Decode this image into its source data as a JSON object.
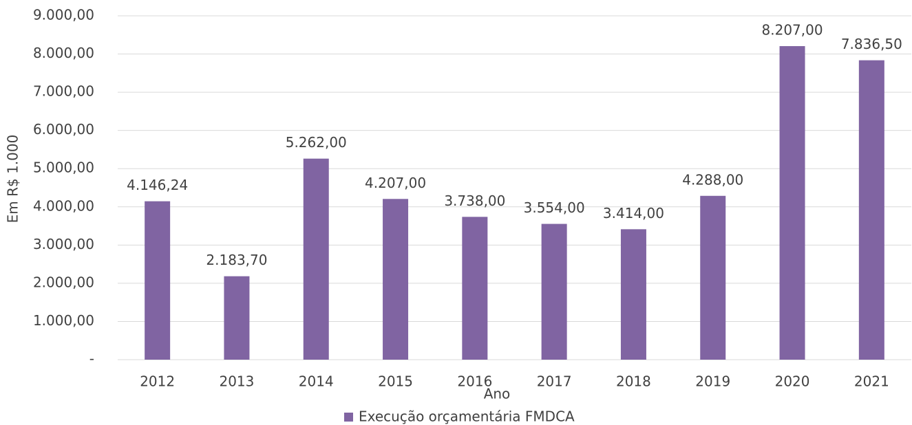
{
  "chart_data": {
    "type": "bar",
    "categories": [
      "2012",
      "2013",
      "2014",
      "2015",
      "2016",
      "2017",
      "2018",
      "2019",
      "2020",
      "2021"
    ],
    "series": [
      {
        "name": "Execução orçamentária FMDCA",
        "color": "#8064a2",
        "values": [
          4146.24,
          2183.7,
          5262,
          4207,
          3738,
          3554,
          3414,
          4288,
          8207,
          7836.5
        ],
        "value_labels": [
          "4.146,24",
          "2.183,70",
          "5.262,00",
          "4.207,00",
          "3.738,00",
          "3.554,00",
          "3.414,00",
          "4.288,00",
          "8.207,00",
          "7.836,50"
        ]
      }
    ],
    "x_label": "Ano",
    "y_label": "Em R$ 1.000",
    "ylim": [
      0,
      9000
    ],
    "yticks": [
      {
        "value": 0,
        "label": "-"
      },
      {
        "value": 1000,
        "label": "1.000,00"
      },
      {
        "value": 2000,
        "label": "2.000,00"
      },
      {
        "value": 3000,
        "label": "3.000,00"
      },
      {
        "value": 4000,
        "label": "4.000,00"
      },
      {
        "value": 5000,
        "label": "5.000,00"
      },
      {
        "value": 6000,
        "label": "6.000,00"
      },
      {
        "value": 7000,
        "label": "7.000,00"
      },
      {
        "value": 8000,
        "label": "8.000,00"
      },
      {
        "value": 9000,
        "label": "9.000,00"
      }
    ],
    "grid": true,
    "legend": "bottom"
  }
}
